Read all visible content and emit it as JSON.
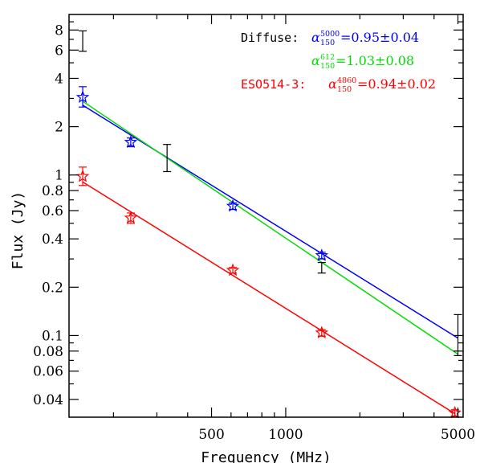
{
  "chart_data": {
    "type": "scatter",
    "title": "",
    "xlabel": "Frequency (MHz)",
    "ylabel": "Flux (Jy)",
    "xscale": "log",
    "yscale": "log",
    "xlim": [
      132,
      5250
    ],
    "ylim": [
      0.031,
      10
    ],
    "grid": false,
    "x_ticks": [
      {
        "value": 500,
        "label": "500"
      },
      {
        "value": 1000,
        "label": "1000"
      },
      {
        "value": 5000,
        "label": "5000"
      }
    ],
    "y_ticks": [
      {
        "value": 0.04,
        "label": "0.04"
      },
      {
        "value": 0.06,
        "label": "0.06"
      },
      {
        "value": 0.08,
        "label": "0.08"
      },
      {
        "value": 0.1,
        "label": "0.1"
      },
      {
        "value": 0.2,
        "label": "0.2"
      },
      {
        "value": 0.4,
        "label": "0.4"
      },
      {
        "value": 0.6,
        "label": "0.6"
      },
      {
        "value": 0.8,
        "label": "0.8"
      },
      {
        "value": 1,
        "label": "1"
      },
      {
        "value": 2,
        "label": "2"
      },
      {
        "value": 4,
        "label": "4"
      },
      {
        "value": 6,
        "label": "6"
      },
      {
        "value": 8,
        "label": "8"
      }
    ],
    "series": [
      {
        "name": "Diffuse",
        "color": "#0000ff",
        "marker": "star",
        "points": [
          {
            "x": 150,
            "y": 3.05,
            "err": [
              0.4,
              0.5
            ]
          },
          {
            "x": 235,
            "y": 1.6,
            "err": [
              0.1,
              0.1
            ]
          },
          {
            "x": 610,
            "y": 0.64,
            "err": [
              0.03,
              0.03
            ]
          },
          {
            "x": 1400,
            "y": 0.315,
            "err": [
              0.015,
              0.015
            ]
          }
        ]
      },
      {
        "name": "ESO514-3",
        "color": "#ff0000",
        "marker": "star",
        "points": [
          {
            "x": 150,
            "y": 0.98,
            "err": [
              0.12,
              0.14
            ]
          },
          {
            "x": 235,
            "y": 0.54,
            "err": [
              0.04,
              0.04
            ]
          },
          {
            "x": 610,
            "y": 0.255,
            "err": [
              0.01,
              0.01
            ]
          },
          {
            "x": 1400,
            "y": 0.104,
            "err": [
              0.005,
              0.005
            ]
          },
          {
            "x": 4860,
            "y": 0.033,
            "err": [
              0.0015,
              0.0015
            ]
          }
        ]
      },
      {
        "name": "",
        "color": "#000000",
        "marker": "errorbar",
        "points": [
          {
            "x": 150,
            "y": 6.9,
            "err": [
              1.0,
              1.0
            ]
          },
          {
            "x": 330,
            "y": 1.3,
            "err": [
              0.25,
              0.25
            ]
          },
          {
            "x": 1400,
            "y": 0.265,
            "err": [
              0.02,
              0.02
            ]
          },
          {
            "x": 5000,
            "y": 0.1,
            "err": [
              0.025,
              0.035
            ]
          }
        ]
      }
    ],
    "fits": [
      {
        "color": "#0000ff",
        "x": [
          150,
          5000
        ],
        "y": [
          2.72,
          0.0964
        ]
      },
      {
        "color": "#00dd00",
        "x": [
          150,
          5000
        ],
        "y": [
          2.88,
          0.0765
        ]
      },
      {
        "color": "#ff0000",
        "x": [
          150,
          4860
        ],
        "y": [
          0.905,
          0.0326
        ]
      }
    ],
    "annotations": [
      {
        "label": "Diffuse:",
        "label_color": "#000000",
        "symbol": "α",
        "sup": "5000",
        "sub": "150",
        "value": "=0.95±0.04",
        "color": "#0000ff"
      },
      {
        "label": "",
        "label_color": "#000000",
        "symbol": "α",
        "sup": "612",
        "sub": "150",
        "value": "=1.03±0.08",
        "color": "#00dd00"
      },
      {
        "label": "ESO514-3:",
        "label_color": "#ff0000",
        "symbol": "α",
        "sup": "4860",
        "sub": "150",
        "value": "=0.94±0.02",
        "color": "#ff0000"
      }
    ]
  }
}
